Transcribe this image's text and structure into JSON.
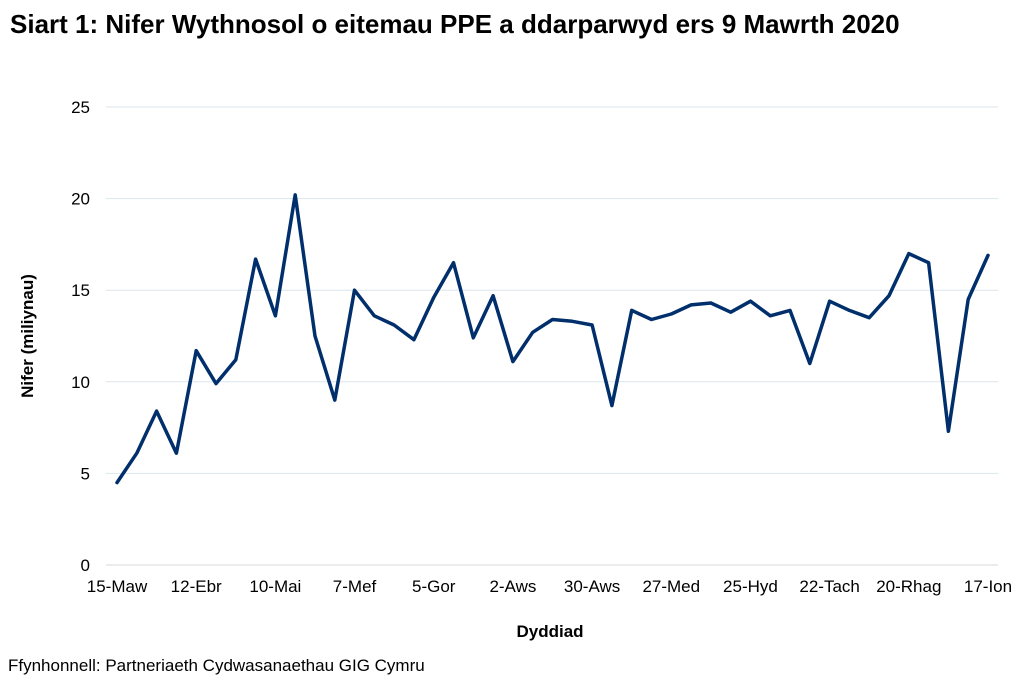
{
  "chart_data": {
    "type": "line",
    "title": "Siart 1: Nifer Wythnosol o eitemau PPE a ddarparwyd ers 9 Mawrth 2020",
    "xlabel": "Dyddiad",
    "ylabel": "Nifer (miliynau)",
    "ylim": [
      0,
      25
    ],
    "yticks": [
      0,
      5,
      10,
      15,
      20,
      25
    ],
    "grid": true,
    "legend": "none",
    "colors": {
      "line": "#002F6C",
      "grid": "#D9E6EE",
      "axis": "#D9D9D9"
    },
    "x_tick_labels": [
      "15-Maw",
      "12-Ebr",
      "10-Mai",
      "7-Mef",
      "5-Gor",
      "2-Aws",
      "30-Aws",
      "27-Med",
      "25-Hyd",
      "22-Tach",
      "20-Rhag",
      "17-Ion"
    ],
    "series": [
      {
        "values": [
          4.5,
          6.1,
          8.4,
          6.1,
          11.7,
          9.9,
          11.2,
          16.7,
          13.6,
          20.2,
          12.5,
          9.0,
          15.0,
          13.6,
          13.1,
          12.3,
          14.6,
          16.5,
          12.4,
          14.7,
          11.1,
          12.7,
          13.4,
          13.3,
          13.1,
          8.7,
          13.9,
          13.4,
          13.7,
          14.2,
          14.3,
          13.8,
          14.4,
          13.6,
          13.9,
          11.0,
          14.4,
          13.9,
          13.5,
          14.7,
          17.0,
          16.5,
          7.3,
          14.5,
          16.9
        ]
      }
    ]
  },
  "source": "Ffynhonnell: Partneriaeth Cydwasanaethau GIG Cymru"
}
